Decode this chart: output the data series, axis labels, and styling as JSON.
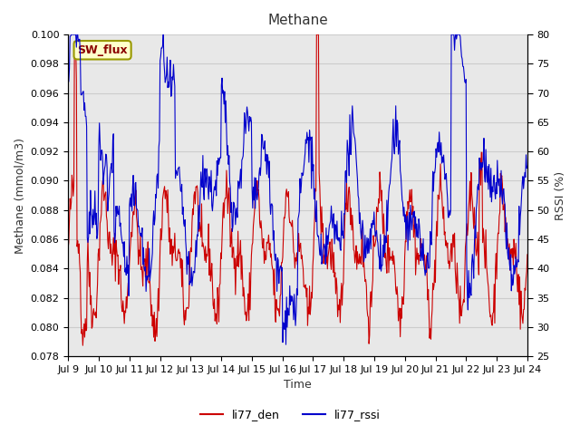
{
  "title": "Methane",
  "ylabel_left": "Methane (mmol/m3)",
  "ylabel_right": "RSSI (%)",
  "xlabel": "Time",
  "ylim_left": [
    0.078,
    0.1
  ],
  "ylim_right": [
    25,
    80
  ],
  "yticks_left": [
    0.078,
    0.08,
    0.082,
    0.084,
    0.086,
    0.088,
    0.09,
    0.092,
    0.094,
    0.096,
    0.098,
    0.1
  ],
  "yticks_right": [
    25,
    30,
    35,
    40,
    45,
    50,
    55,
    60,
    65,
    70,
    75,
    80
  ],
  "xtick_labels": [
    "Jul 9",
    "Jul 10",
    "Jul 11",
    "Jul 12",
    "Jul 13",
    "Jul 14",
    "Jul 15",
    "Jul 16",
    "Jul 17",
    "Jul 18",
    "Jul 19",
    "Jul 20",
    "Jul 21",
    "Jul 22",
    "Jul 23",
    "Jul 24"
  ],
  "annotation_text": "SW_flux",
  "annotation_facecolor": "#ffffcc",
  "annotation_edgecolor": "#999900",
  "legend_labels": [
    "li77_den",
    "li77_rssi"
  ],
  "line_colors": [
    "#cc0000",
    "#0000cc"
  ],
  "background_color": "#e8e8e8",
  "outer_color": "#ffffff",
  "seed": 42
}
